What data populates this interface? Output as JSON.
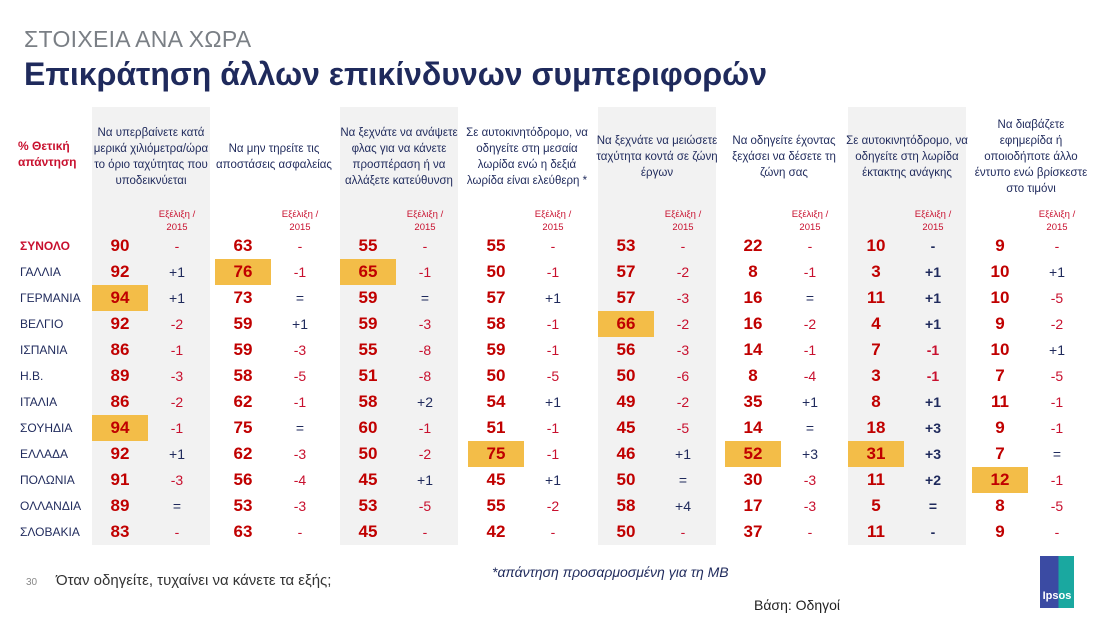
{
  "header": {
    "supertitle": "ΣΤΟΙΧΕΙΑ ΑΝΑ ΧΩΡΑ",
    "title": "Επικράτηση άλλων επικίνδυνων συμπεριφορών"
  },
  "row_label": "% Θετική απάντηση",
  "change_label": "Εξέλιξη / 2015",
  "colors": {
    "highlight": "#f3bd48",
    "value": "#c00000",
    "negative": "#c8102e",
    "positive": "#1f2a5c"
  },
  "questions": [
    "Να υπερβαίνετε κατά μερικά χιλιόμετρα/ώρα το όριο ταχύτητας που υποδεικνύεται",
    "Να μην τηρείτε τις αποστάσεις ασφαλείας",
    "Να ξεχνάτε να ανάψετε φλας για να κάνετε προσπέραση ή να αλλάξετε κατεύθυνση",
    "Σε αυτοκινητόδρομο, να οδηγείτε στη μεσαία λωρίδα ενώ η δεξιά λωρίδα είναι ελεύθερη *",
    "Να ξεχνάτε να μειώσετε ταχύτητα κοντά σε ζώνη έργων",
    "Να οδηγείτε έχοντας ξεχάσει να δέσετε τη ζώνη σας",
    "Σε αυτοκινητόδρομο, να οδηγείτε στη λωρίδα έκτακτης ανάγκης",
    "Να διαβάζετε εφημερίδα ή οποιοδήποτε άλλο έντυπο ενώ βρίσκεστε στο τιμόνι"
  ],
  "rows": [
    {
      "country": "ΣΥΝΟΛΟ",
      "total": true,
      "values": [
        "90",
        "63",
        "55",
        "55",
        "53",
        "22",
        "10",
        "9"
      ],
      "changes": [
        "-",
        "-",
        "-",
        "-",
        "-",
        "-",
        "-",
        "-"
      ],
      "highlight": []
    },
    {
      "country": "ΓΑΛΛΙΑ",
      "values": [
        "92",
        "76",
        "65",
        "50",
        "57",
        "8",
        "3",
        "10"
      ],
      "changes": [
        "+1",
        "-1",
        "-1",
        "-1",
        "-2",
        "-1",
        "+1",
        "+1"
      ],
      "highlight": [
        1,
        2
      ]
    },
    {
      "country": "ΓΕΡΜΑΝΙΑ",
      "values": [
        "94",
        "73",
        "59",
        "57",
        "57",
        "16",
        "11",
        "10"
      ],
      "changes": [
        "+1",
        "=",
        "=",
        "+1",
        "-3",
        "=",
        "+1",
        "-5"
      ],
      "highlight": [
        0
      ]
    },
    {
      "country": "ΒΕΛΓΙΟ",
      "values": [
        "92",
        "59",
        "59",
        "58",
        "66",
        "16",
        "4",
        "9"
      ],
      "changes": [
        "-2",
        "+1",
        "-3",
        "-1",
        "-2",
        "-2",
        "+1",
        "-2"
      ],
      "highlight": [
        4
      ]
    },
    {
      "country": "ΙΣΠΑΝΙΑ",
      "values": [
        "86",
        "59",
        "55",
        "59",
        "56",
        "14",
        "7",
        "10"
      ],
      "changes": [
        "-1",
        "-3",
        "-8",
        "-1",
        "-3",
        "-1",
        "-1",
        "+1"
      ],
      "highlight": []
    },
    {
      "country": "Η.Β.",
      "values": [
        "89",
        "58",
        "51",
        "50",
        "50",
        "8",
        "3",
        "7"
      ],
      "changes": [
        "-3",
        "-5",
        "-8",
        "-5",
        "-6",
        "-4",
        "-1",
        "-5"
      ],
      "highlight": []
    },
    {
      "country": "ΙΤΑΛΙΑ",
      "values": [
        "86",
        "62",
        "58",
        "54",
        "49",
        "35",
        "8",
        "11"
      ],
      "changes": [
        "-2",
        "-1",
        "+2",
        "+1",
        "-2",
        "+1",
        "+1",
        "-1"
      ],
      "highlight": []
    },
    {
      "country": "ΣΟΥΗΔΙΑ",
      "values": [
        "94",
        "75",
        "60",
        "51",
        "45",
        "14",
        "18",
        "9"
      ],
      "changes": [
        "-1",
        "=",
        "-1",
        "-1",
        "-5",
        "=",
        "+3",
        "-1"
      ],
      "highlight": [
        0
      ]
    },
    {
      "country": "ΕΛΛΑΔΑ",
      "values": [
        "92",
        "62",
        "50",
        "75",
        "46",
        "52",
        "31",
        "7"
      ],
      "changes": [
        "+1",
        "-3",
        "-2",
        "-1",
        "+1",
        "+3",
        "+3",
        "="
      ],
      "highlight": [
        3,
        5,
        6
      ]
    },
    {
      "country": "ΠΟΛΩΝΙΑ",
      "values": [
        "91",
        "56",
        "45",
        "45",
        "50",
        "30",
        "11",
        "12"
      ],
      "changes": [
        "-3",
        "-4",
        "+1",
        "+1",
        "=",
        "-3",
        "+2",
        "-1"
      ],
      "highlight": [
        7
      ]
    },
    {
      "country": "ΟΛΛΑΝΔΙΑ",
      "values": [
        "89",
        "53",
        "53",
        "55",
        "58",
        "17",
        "5",
        "8"
      ],
      "changes": [
        "=",
        "-3",
        "-5",
        "-2",
        "+4",
        "-3",
        "=",
        "-5"
      ],
      "highlight": []
    },
    {
      "country": "ΣΛΟΒΑΚΙΑ",
      "values": [
        "83",
        "63",
        "45",
        "42",
        "50",
        "37",
        "11",
        "9"
      ],
      "changes": [
        "-",
        "-",
        "-",
        "-",
        "-",
        "-",
        "-",
        "-"
      ],
      "highlight": []
    }
  ],
  "footer": {
    "page": "30",
    "question": "Όταν οδηγείτε, τυχαίνει να κάνετε τα εξής;",
    "note": "*απάντηση προσαρμοσμένη για τη ΜΒ",
    "base": "Βάση: Οδηγοί",
    "logo": "Ipsos"
  }
}
